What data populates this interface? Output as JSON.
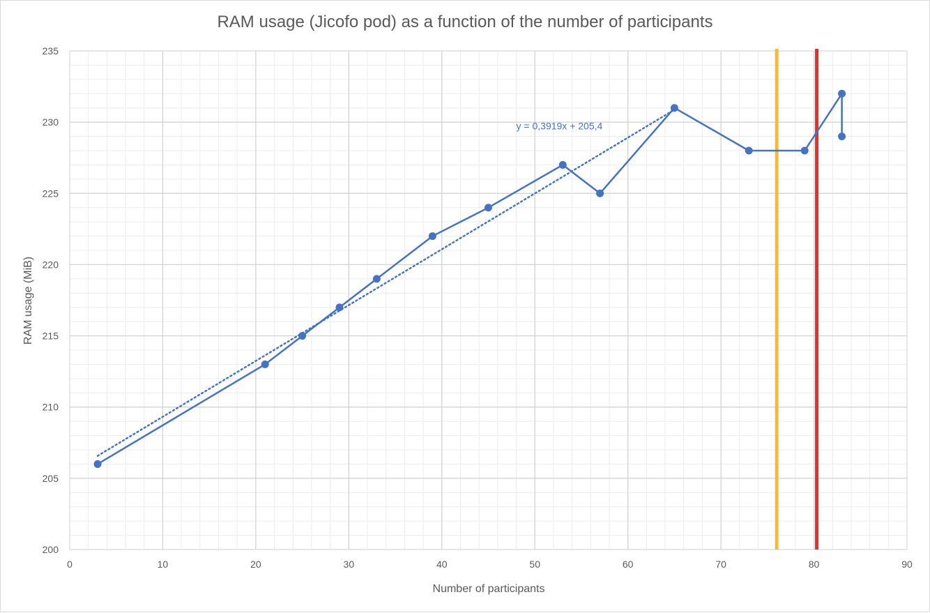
{
  "chart_data": {
    "type": "scatter",
    "title": "RAM usage (Jicofo pod) as a function of the number of participants",
    "xlabel": "Number of participants",
    "ylabel": "RAM usage (MiB)",
    "xlim": [
      0,
      90
    ],
    "ylim": [
      200,
      235
    ],
    "x_ticks": [
      0,
      10,
      20,
      30,
      40,
      50,
      60,
      70,
      80,
      90
    ],
    "y_ticks": [
      200,
      205,
      210,
      215,
      220,
      225,
      230,
      235
    ],
    "grid": true,
    "legend": "none",
    "series": [
      {
        "color": "#4472c4",
        "marker": "circle",
        "line": "solid",
        "points": [
          {
            "x": 3,
            "y": 206
          },
          {
            "x": 21,
            "y": 213
          },
          {
            "x": 25,
            "y": 215
          },
          {
            "x": 29,
            "y": 217
          },
          {
            "x": 33,
            "y": 219
          },
          {
            "x": 39,
            "y": 222
          },
          {
            "x": 45,
            "y": 224
          },
          {
            "x": 53,
            "y": 227
          },
          {
            "x": 57,
            "y": 225
          },
          {
            "x": 65,
            "y": 231
          },
          {
            "x": 73,
            "y": 228
          },
          {
            "x": 79,
            "y": 228
          },
          {
            "x": 83,
            "y": 232
          },
          {
            "x": 83,
            "y": 229
          }
        ]
      }
    ],
    "trendline": {
      "type": "linear",
      "slope": 0.3919,
      "intercept": 205.4,
      "x_range": [
        3,
        65
      ],
      "label": "y = 0,3919x + 205,4",
      "label_anchor": {
        "x": 48,
        "y": 229.5
      },
      "color": "#4472c4",
      "style": "dotted"
    },
    "vertical_lines": [
      {
        "x": 76,
        "color": "#f4b942"
      },
      {
        "x": 80.3,
        "color": "#e0312a"
      }
    ]
  }
}
